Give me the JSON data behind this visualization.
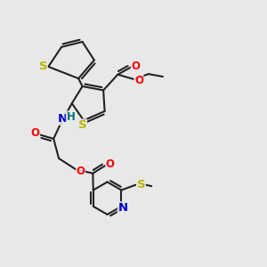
{
  "bg_color": "#e8e8e8",
  "bond_color": "#222222",
  "bond_width": 1.5,
  "atom_colors": {
    "S": "#b8b800",
    "O": "#ff0000",
    "N": "#0000cc",
    "H": "#007070"
  },
  "font_size": 8.5
}
